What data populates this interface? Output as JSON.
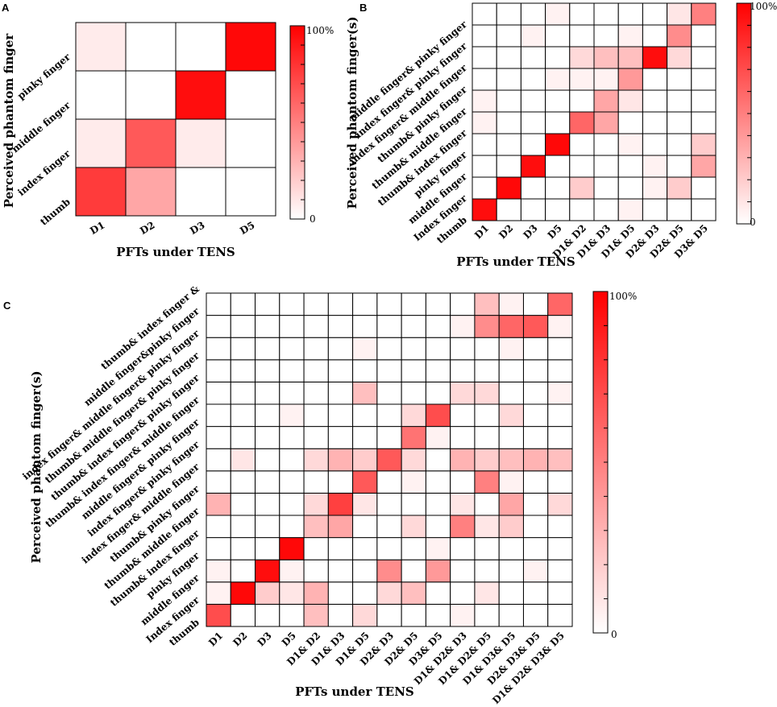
{
  "chart_data": [
    {
      "panel": "A",
      "type": "heatmap",
      "xlabel": "PFTs under TENS",
      "ylabel": "Perceived phantom finger",
      "x_categories": [
        "D1",
        "D2",
        "D3",
        "D5"
      ],
      "y_categories": [
        "thumb",
        "index finger",
        "middle finger",
        "pinky finger"
      ],
      "values": [
        [
          0.77,
          0.35,
          0,
          0
        ],
        [
          0.08,
          0.65,
          0.08,
          0
        ],
        [
          0,
          0,
          0.95,
          0
        ],
        [
          0.08,
          0,
          0,
          0.97
        ]
      ],
      "colorbar": {
        "max_label": "100%",
        "min_label": "0",
        "ticks": 10
      }
    },
    {
      "panel": "B",
      "type": "heatmap",
      "xlabel": "PFTs under TENS",
      "ylabel": "Perceived phantom finger(s)",
      "x_categories": [
        "D1",
        "D2",
        "D3",
        "D5",
        "D1& D2",
        "D1& D3",
        "D1& D5",
        "D2& D3",
        "D2& D5",
        "D3& D5"
      ],
      "y_categories": [
        "thumb",
        "Index finger",
        "middle finger",
        "pinky finger",
        "thumb& index finger",
        "thumb& middle finger",
        "thumb& pinky finger",
        "index finger& middle finger",
        "index finger& pinky finger",
        "middle finger& pinky finger"
      ],
      "values": [
        [
          0.95,
          0,
          0,
          0,
          0,
          0,
          0.05,
          0,
          0,
          0
        ],
        [
          0,
          0.97,
          0,
          0,
          0.2,
          0,
          0,
          0.05,
          0.2,
          0
        ],
        [
          0,
          0,
          0.95,
          0,
          0,
          0,
          0,
          0.05,
          0,
          0.35
        ],
        [
          0,
          0,
          0,
          0.97,
          0,
          0,
          0.05,
          0,
          0,
          0.2
        ],
        [
          0.05,
          0,
          0,
          0,
          0.6,
          0.35,
          0,
          0,
          0,
          0
        ],
        [
          0.05,
          0,
          0,
          0,
          0,
          0.35,
          0.1,
          0,
          0,
          0
        ],
        [
          0,
          0,
          0,
          0.05,
          0.05,
          0.05,
          0.4,
          0,
          0,
          0
        ],
        [
          0,
          0,
          0,
          0,
          0.15,
          0.25,
          0.25,
          0.95,
          0.15,
          0
        ],
        [
          0,
          0,
          0.05,
          0,
          0,
          0,
          0.05,
          0,
          0.45,
          0
        ],
        [
          0,
          0,
          0,
          0.05,
          0,
          0,
          0,
          0,
          0.1,
          0.5
        ]
      ],
      "colorbar": {
        "max_label": "100%",
        "min_label": "0",
        "ticks": 10
      }
    },
    {
      "panel": "C",
      "type": "heatmap",
      "xlabel": "PFTs under TENS",
      "ylabel": "Perceived phantom finger(s)",
      "x_categories": [
        "D1",
        "D2",
        "D3",
        "D5",
        "D1& D2",
        "D1& D3",
        "D1& D5",
        "D2& D3",
        "D2& D5",
        "D3& D5",
        "D1& D2& D3",
        "D1& D2& D5",
        "D1& D3& D5",
        "D2& D3& D5",
        "D1& D2& D3& D5"
      ],
      "y_categories": [
        "thumb",
        "Index finger",
        "middle finger",
        "pinky finger",
        "thumb& index finger",
        "thumb& middle finger",
        "thumb& pinky finger",
        "index finger& middle finger",
        "index finger& pinky finger",
        "middle finger& pinky finger",
        "thumb& index finger& middle finger",
        "thumb& index finger& pinky finger",
        "thumb& middle finger& pinky finger",
        "index finger& middle finger& pinky finger",
        "thumb& index finger & middle finger&pinky finger"
      ],
      "y_tick_lines": [
        "thumb",
        "Index finger",
        "middle finger",
        "pinky finger",
        "thumb& index finger",
        "thumb& middle finger",
        "thumb& pinky finger",
        "index finger& middle finger",
        "index finger& pinky finger",
        "middle finger& pinky finger",
        "thumb& index finger& middle finger",
        "thumb& index finger& pinky finger",
        "thumb& middle finger& pinky finger",
        "index finger& middle finger& pinky finger",
        "middle finger&pinky finger",
        "thumb& index finger &"
      ],
      "values": [
        [
          0.7,
          0,
          0,
          0,
          0.25,
          0,
          0.15,
          0,
          0,
          0,
          0.05,
          0,
          0,
          0,
          0
        ],
        [
          0.05,
          0.97,
          0.2,
          0.1,
          0.3,
          0,
          0,
          0.15,
          0.25,
          0,
          0,
          0.1,
          0,
          0,
          0
        ],
        [
          0.05,
          0,
          0.95,
          0.05,
          0,
          0,
          0,
          0.45,
          0,
          0.4,
          0,
          0,
          0,
          0.05,
          0
        ],
        [
          0,
          0,
          0,
          0.97,
          0,
          0,
          0,
          0,
          0,
          0.05,
          0,
          0,
          0,
          0,
          0
        ],
        [
          0,
          0,
          0,
          0,
          0.25,
          0.35,
          0,
          0,
          0.15,
          0,
          0.5,
          0.1,
          0.2,
          0,
          0
        ],
        [
          0.3,
          0,
          0,
          0,
          0.15,
          0.75,
          0.1,
          0,
          0,
          0,
          0.1,
          0,
          0.35,
          0,
          0.15
        ],
        [
          0,
          0,
          0,
          0,
          0,
          0,
          0.65,
          0,
          0.05,
          0,
          0,
          0.5,
          0.05,
          0,
          0
        ],
        [
          0,
          0.1,
          0,
          0,
          0.15,
          0.3,
          0.2,
          0.65,
          0.15,
          0,
          0.3,
          0.2,
          0.25,
          0.3,
          0.25
        ],
        [
          0,
          0,
          0,
          0,
          0,
          0,
          0,
          0,
          0.55,
          0.05,
          0,
          0,
          0,
          0,
          0
        ],
        [
          0,
          0,
          0,
          0.05,
          0,
          0,
          0,
          0,
          0.15,
          0.7,
          0,
          0,
          0.15,
          0,
          0
        ],
        [
          0,
          0,
          0,
          0,
          0,
          0,
          0.25,
          0,
          0,
          0,
          0.15,
          0.15,
          0,
          0,
          0.05
        ],
        [
          0,
          0,
          0,
          0,
          0,
          0,
          0,
          0,
          0,
          0,
          0,
          0,
          0,
          0,
          0
        ],
        [
          0,
          0,
          0,
          0,
          0,
          0,
          0.05,
          0,
          0,
          0,
          0,
          0,
          0.05,
          0,
          0
        ],
        [
          0,
          0,
          0,
          0,
          0,
          0,
          0,
          0,
          0,
          0,
          0.05,
          0.45,
          0.6,
          0.65,
          0.05
        ],
        [
          0,
          0,
          0,
          0,
          0,
          0,
          0,
          0,
          0,
          0,
          0,
          0.25,
          0.05,
          0,
          0.6
        ]
      ],
      "colorbar": {
        "max_label": "100%",
        "min_label": "0",
        "ticks": 10
      }
    }
  ],
  "colors": {
    "max": "#ff0000",
    "min": "#ffffff",
    "grid": "#000000"
  }
}
